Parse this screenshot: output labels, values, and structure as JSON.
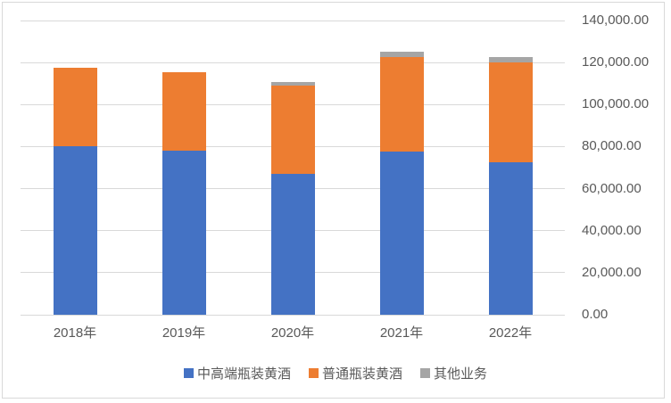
{
  "colors": {
    "grid": "#d9d9d9",
    "frame": "#d9d9d9",
    "text": "#595959",
    "background": "#ffffff"
  },
  "chart_data": {
    "type": "bar",
    "stacked": true,
    "title": "",
    "xlabel": "",
    "ylabel": "",
    "categories": [
      "2018年",
      "2019年",
      "2020年",
      "2021年",
      "2022年"
    ],
    "series": [
      {
        "name": "中高端瓶装黄酒",
        "color": "#4472C4",
        "values": [
          80000,
          78000,
          67000,
          77700,
          72500
        ]
      },
      {
        "name": "普通瓶装黄酒",
        "color": "#ED7D31",
        "values": [
          37700,
          37400,
          42200,
          45000,
          47400
        ]
      },
      {
        "name": "其他业务",
        "color": "#A5A5A5",
        "values": [
          0,
          0,
          1400,
          2400,
          2900
        ]
      }
    ],
    "ylim": [
      0,
      140000
    ],
    "ytick_step": 20000,
    "ytick_labels": [
      "0.00",
      "20,000.00",
      "40,000.00",
      "60,000.00",
      "80,000.00",
      "100,000.00",
      "120,000.00",
      "140,000.00"
    ],
    "yaxis_side": "right",
    "grid": true,
    "legend_position": "bottom"
  }
}
